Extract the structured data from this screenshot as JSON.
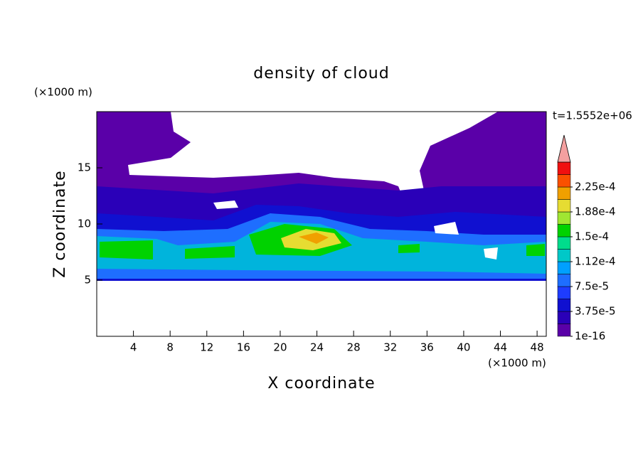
{
  "chart_data": {
    "type": "contour",
    "title": "density of cloud",
    "x_label": "X coordinate",
    "y_label": "Z coordinate",
    "x_unit": "(×1000 m)",
    "y_unit": "(×1000 m)",
    "annotation": "t=1.5552e+06",
    "xlim": [
      0,
      49
    ],
    "xticks": [
      4,
      8,
      12,
      16,
      20,
      24,
      28,
      32,
      36,
      40,
      44,
      48
    ],
    "ylim": [
      0,
      20
    ],
    "yticks": [
      5,
      10,
      15
    ],
    "colorbar": {
      "colors": [
        "#5a00a8",
        "#2a00b8",
        "#1010d0",
        "#1e3cff",
        "#1e6eff",
        "#00a0ff",
        "#00c8c8",
        "#00dc8c",
        "#00d200",
        "#a0e632",
        "#e6dc32",
        "#f0a000",
        "#fa5000",
        "#f01010"
      ],
      "levels": [
        1e-16,
        {
          "value": 3.75e-05,
          "label": "3.75e-5"
        },
        {
          "value": 7.5e-05,
          "label": "7.5e-5"
        },
        {
          "value": 0.000112,
          "label": "1.12e-4"
        },
        {
          "value": 0.00015,
          "label": "1.5e-4"
        },
        {
          "value": 0.000188,
          "label": "1.88e-4"
        },
        {
          "value": 0.000225,
          "label": "2.25e-4"
        }
      ],
      "extend_color": "#f4a0a0"
    }
  }
}
